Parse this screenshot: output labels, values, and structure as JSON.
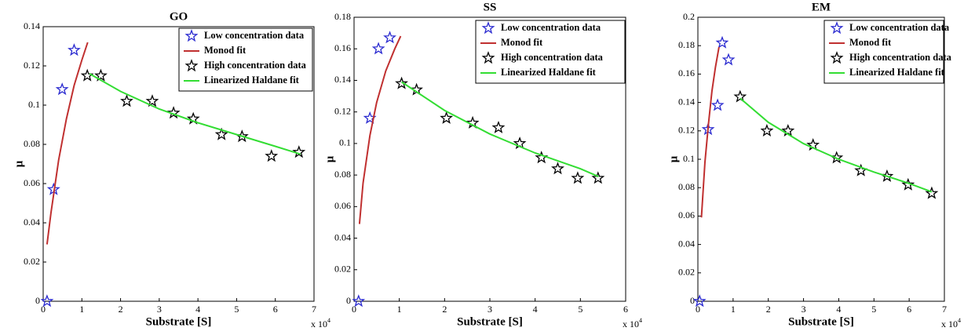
{
  "chart_data": [
    {
      "type": "scatter",
      "title": "GO",
      "x_label": "Substrate [S]",
      "y_label": "μ",
      "x_multiplier": "x 10",
      "x_multiplier_exponent": "4",
      "xlim": [
        0,
        7
      ],
      "ylim": [
        0,
        0.14
      ],
      "xticks": [
        0,
        1,
        2,
        3,
        4,
        5,
        6,
        7
      ],
      "yticks": [
        0,
        0.02,
        0.04,
        0.06,
        0.08,
        0.1,
        0.12,
        0.14
      ],
      "series": [
        {
          "name": "Low concentration data",
          "color": "#2a2ad0",
          "mode": "markers",
          "x": [
            0.1,
            0.27,
            0.49,
            0.8
          ],
          "values": [
            0,
            0.057,
            0.108,
            0.128
          ]
        },
        {
          "name": "Monod fit",
          "color": "#c03030",
          "mode": "line",
          "x": [
            0.1,
            0.2,
            0.4,
            0.6,
            0.8,
            1.0,
            1.15
          ],
          "values": [
            0.029,
            0.045,
            0.072,
            0.093,
            0.11,
            0.123,
            0.132
          ]
        },
        {
          "name": "High concentration data",
          "color": "#000000",
          "mode": "markers",
          "x": [
            1.14,
            1.49,
            2.16,
            2.82,
            3.37,
            3.88,
            4.61,
            5.14,
            5.9,
            6.61
          ],
          "values": [
            0.115,
            0.115,
            0.102,
            0.102,
            0.096,
            0.093,
            0.085,
            0.084,
            0.074,
            0.076
          ]
        },
        {
          "name": "Linearized Haldane fit",
          "color": "#33dd33",
          "mode": "line",
          "x": [
            1.2,
            2,
            3,
            4,
            5,
            6,
            6.65
          ],
          "values": [
            0.116,
            0.107,
            0.098,
            0.091,
            0.085,
            0.079,
            0.075
          ]
        }
      ]
    },
    {
      "type": "scatter",
      "title": "SS",
      "x_label": "Substrate [S]",
      "y_label": "μ",
      "x_multiplier": "x 10",
      "x_multiplier_exponent": "4",
      "xlim": [
        0,
        6
      ],
      "ylim": [
        0,
        0.18
      ],
      "xticks": [
        0,
        1,
        2,
        3,
        4,
        5,
        6
      ],
      "yticks": [
        0,
        0.02,
        0.04,
        0.06,
        0.08,
        0.1,
        0.12,
        0.14,
        0.16,
        0.18
      ],
      "series": [
        {
          "name": "Low concentration data",
          "color": "#2a2ad0",
          "mode": "markers",
          "x": [
            0.1,
            0.35,
            0.54,
            0.79
          ],
          "values": [
            0,
            0.116,
            0.16,
            0.167
          ]
        },
        {
          "name": "Monod fit",
          "color": "#c03030",
          "mode": "line",
          "x": [
            0.12,
            0.2,
            0.35,
            0.5,
            0.7,
            0.9,
            1.03
          ],
          "values": [
            0.049,
            0.075,
            0.105,
            0.126,
            0.146,
            0.16,
            0.168
          ]
        },
        {
          "name": "High concentration data",
          "color": "#000000",
          "mode": "markers",
          "x": [
            1.05,
            1.38,
            2.04,
            2.62,
            3.19,
            3.66,
            4.14,
            4.5,
            4.94,
            5.39
          ],
          "values": [
            0.138,
            0.134,
            0.116,
            0.113,
            0.11,
            0.1,
            0.091,
            0.084,
            0.078,
            0.078
          ]
        },
        {
          "name": "Linearized Haldane fit",
          "color": "#33dd33",
          "mode": "line",
          "x": [
            1.05,
            2,
            3,
            4,
            5,
            5.4
          ],
          "values": [
            0.139,
            0.121,
            0.106,
            0.094,
            0.084,
            0.079
          ]
        }
      ]
    },
    {
      "type": "scatter",
      "title": "EM",
      "x_label": "Substrate [S]",
      "y_label": "μ",
      "x_multiplier": "x 10",
      "x_multiplier_exponent": "4",
      "xlim": [
        0,
        7
      ],
      "ylim": [
        0,
        0.2
      ],
      "xticks": [
        0,
        1,
        2,
        3,
        4,
        5,
        6,
        7
      ],
      "yticks": [
        0,
        0.02,
        0.04,
        0.06,
        0.08,
        0.1,
        0.12,
        0.14,
        0.16,
        0.18,
        0.2
      ],
      "series": [
        {
          "name": "Low concentration data",
          "color": "#2a2ad0",
          "mode": "markers",
          "x": [
            0.05,
            0.29,
            0.56,
            0.69,
            0.87
          ],
          "values": [
            0,
            0.121,
            0.138,
            0.182,
            0.17
          ]
        },
        {
          "name": "Monod fit",
          "color": "#c03030",
          "mode": "line",
          "x": [
            0.1,
            0.2,
            0.3,
            0.4,
            0.5,
            0.6
          ],
          "values": [
            0.059,
            0.098,
            0.125,
            0.148,
            0.165,
            0.179
          ]
        },
        {
          "name": "High concentration data",
          "color": "#000000",
          "mode": "markers",
          "x": [
            1.2,
            1.96,
            2.56,
            3.27,
            3.94,
            4.63,
            5.37,
            5.97,
            6.64
          ],
          "values": [
            0.144,
            0.12,
            0.12,
            0.11,
            0.101,
            0.092,
            0.088,
            0.082,
            0.076
          ]
        },
        {
          "name": "Linearized Haldane fit",
          "color": "#33dd33",
          "mode": "line",
          "x": [
            1.2,
            2,
            3,
            4,
            5,
            6,
            6.64
          ],
          "values": [
            0.143,
            0.126,
            0.111,
            0.1,
            0.091,
            0.083,
            0.077
          ]
        }
      ]
    }
  ]
}
